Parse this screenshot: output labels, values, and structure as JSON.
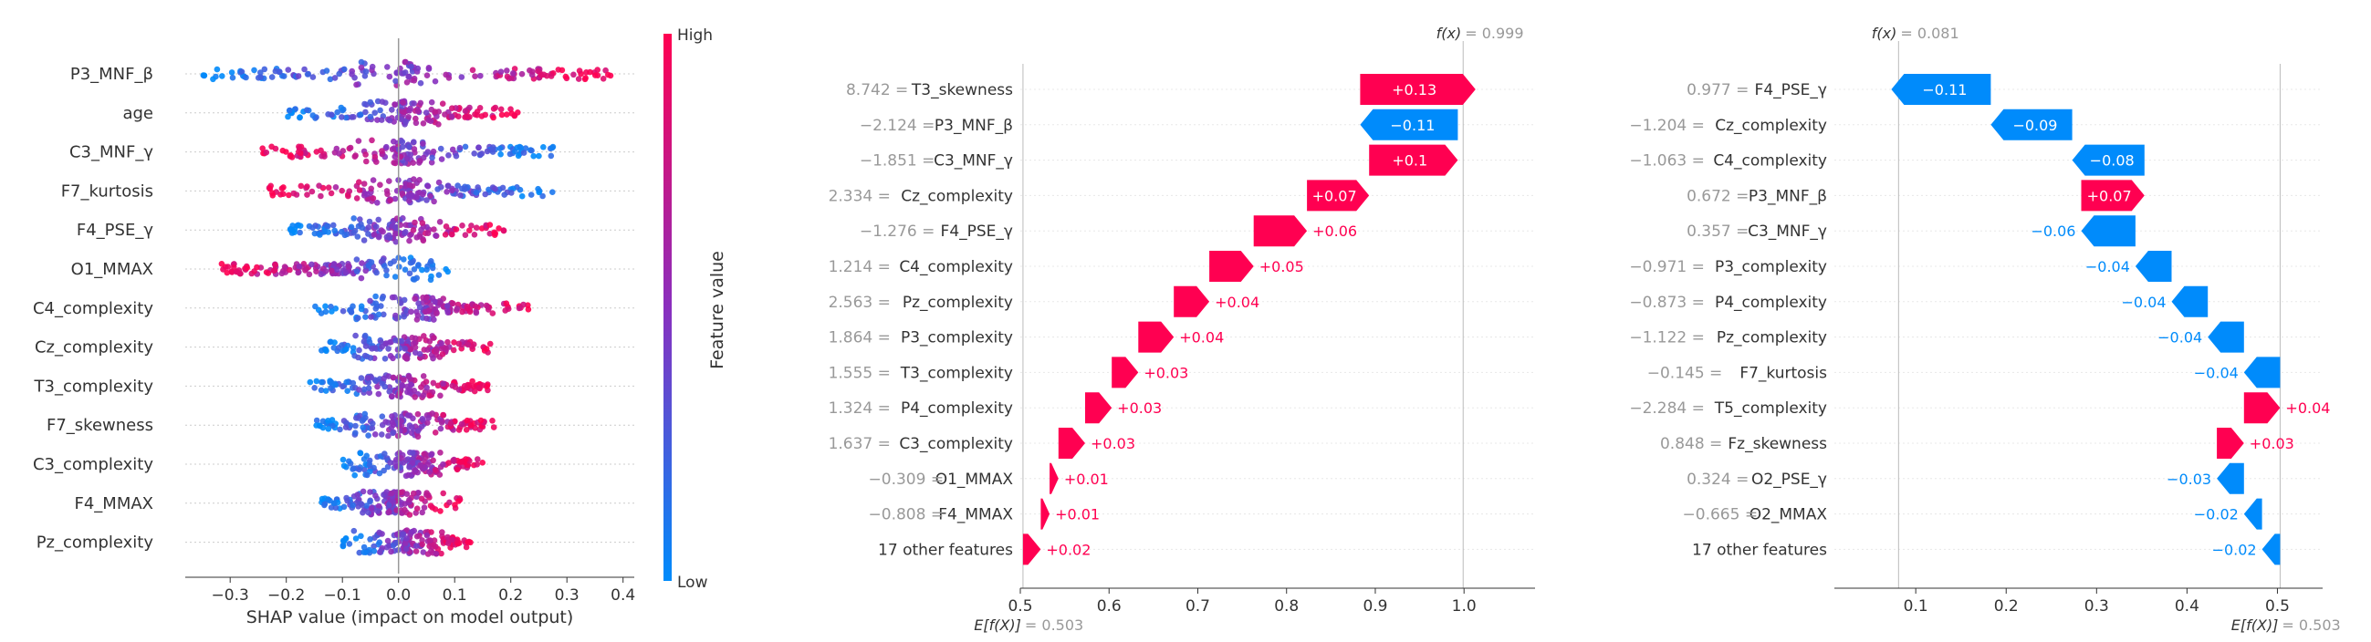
{
  "colors": {
    "positive": "#ff0051",
    "negative": "#008bfb",
    "mid": "#8a2fbe",
    "grid": "#e5e5e5"
  },
  "chart_data": [
    {
      "type": "scatter",
      "subtype": "beeswarm",
      "features": [
        "P3_MNF_β",
        "age",
        "C3_MNF_γ",
        "F7_kurtosis",
        "F4_PSE_γ",
        "O1_MMAX",
        "C4_complexity",
        "Cz_complexity",
        "T3_complexity",
        "F7_skewness",
        "C3_complexity",
        "F4_MMAX",
        "Pz_complexity"
      ],
      "xlabel": "SHAP value (impact on model output)",
      "xlim": [
        -0.38,
        0.42
      ],
      "xticks": [
        -0.3,
        -0.2,
        -0.1,
        0.0,
        0.1,
        0.2,
        0.3,
        0.4
      ],
      "xtick_labels": [
        "−0.3",
        "−0.2",
        "−0.1",
        "0.0",
        "0.1",
        "0.2",
        "0.3",
        "0.4"
      ],
      "shap_range": [
        [
          -0.35,
          0.4
        ],
        [
          -0.2,
          0.22
        ],
        [
          -0.25,
          0.28
        ],
        [
          -0.24,
          0.28
        ],
        [
          -0.2,
          0.19
        ],
        [
          -0.32,
          0.09
        ],
        [
          -0.15,
          0.25
        ],
        [
          -0.14,
          0.17
        ],
        [
          -0.16,
          0.16
        ],
        [
          -0.15,
          0.17
        ],
        [
          -0.1,
          0.15
        ],
        [
          -0.14,
          0.11
        ],
        [
          -0.1,
          0.13
        ]
      ],
      "colorbar": {
        "high_label": "High",
        "low_label": "Low",
        "label": "Feature value"
      }
    },
    {
      "type": "bar",
      "subtype": "waterfall",
      "fx_label": "f(x)",
      "fx_value": "= 0.999",
      "ex_label": "E[f(X)]",
      "ex_value": "= 0.503",
      "base": 0.503,
      "fx": 0.999,
      "xlim": [
        0.5,
        1.08
      ],
      "xticks": [
        0.5,
        0.6,
        0.7,
        0.8,
        0.9,
        1.0
      ],
      "xtick_labels": [
        "0.5",
        "0.6",
        "0.7",
        "0.8",
        "0.9",
        "1.0"
      ],
      "rows": [
        {
          "value": "8.742 =",
          "feature": "T3_skewness",
          "shap": 0.13,
          "label": "+0.13"
        },
        {
          "value": "−2.124 =",
          "feature": "P3_MNF_β",
          "shap": -0.11,
          "label": "−0.11"
        },
        {
          "value": "−1.851 =",
          "feature": "C3_MNF_γ",
          "shap": 0.1,
          "label": "+0.1"
        },
        {
          "value": "2.334 =",
          "feature": "Cz_complexity",
          "shap": 0.07,
          "label": "+0.07"
        },
        {
          "value": "−1.276 =",
          "feature": "F4_PSE_γ",
          "shap": 0.06,
          "label": "+0.06"
        },
        {
          "value": "1.214 =",
          "feature": "C4_complexity",
          "shap": 0.05,
          "label": "+0.05"
        },
        {
          "value": "2.563 =",
          "feature": "Pz_complexity",
          "shap": 0.04,
          "label": "+0.04"
        },
        {
          "value": "1.864 =",
          "feature": "P3_complexity",
          "shap": 0.04,
          "label": "+0.04"
        },
        {
          "value": "1.555 =",
          "feature": "T3_complexity",
          "shap": 0.03,
          "label": "+0.03"
        },
        {
          "value": "1.324 =",
          "feature": "P4_complexity",
          "shap": 0.03,
          "label": "+0.03"
        },
        {
          "value": "1.637 =",
          "feature": "C3_complexity",
          "shap": 0.03,
          "label": "+0.03"
        },
        {
          "value": "−0.309 =",
          "feature": "O1_MMAX",
          "shap": 0.01,
          "label": "+0.01"
        },
        {
          "value": "−0.808 =",
          "feature": "F4_MMAX",
          "shap": 0.01,
          "label": "+0.01"
        },
        {
          "value": "",
          "feature": "17 other features",
          "shap": 0.02,
          "label": "+0.02"
        }
      ]
    },
    {
      "type": "bar",
      "subtype": "waterfall",
      "fx_label": "f(x)",
      "fx_value": "= 0.081",
      "ex_label": "E[f(X)]",
      "ex_value": "= 0.503",
      "base": 0.503,
      "fx": 0.081,
      "xlim": [
        0.01,
        0.55
      ],
      "xticks": [
        0.1,
        0.2,
        0.3,
        0.4,
        0.5
      ],
      "xtick_labels": [
        "0.1",
        "0.2",
        "0.3",
        "0.4",
        "0.5"
      ],
      "rows": [
        {
          "value": "0.977 =",
          "feature": "F4_PSE_γ",
          "shap": -0.11,
          "label": "−0.11"
        },
        {
          "value": "−1.204 =",
          "feature": "Cz_complexity",
          "shap": -0.09,
          "label": "−0.09"
        },
        {
          "value": "−1.063 =",
          "feature": "C4_complexity",
          "shap": -0.08,
          "label": "−0.08"
        },
        {
          "value": "0.672 =",
          "feature": "P3_MNF_β",
          "shap": 0.07,
          "label": "+0.07"
        },
        {
          "value": "0.357 =",
          "feature": "C3_MNF_γ",
          "shap": -0.06,
          "label": "−0.06"
        },
        {
          "value": "−0.971 =",
          "feature": "P3_complexity",
          "shap": -0.04,
          "label": "−0.04"
        },
        {
          "value": "−0.873 =",
          "feature": "P4_complexity",
          "shap": -0.04,
          "label": "−0.04"
        },
        {
          "value": "−1.122 =",
          "feature": "Pz_complexity",
          "shap": -0.04,
          "label": "−0.04"
        },
        {
          "value": "−0.145 =",
          "feature": "F7_kurtosis",
          "shap": -0.04,
          "label": "−0.04"
        },
        {
          "value": "−2.284 =",
          "feature": "T5_complexity",
          "shap": 0.04,
          "label": "+0.04"
        },
        {
          "value": "0.848 =",
          "feature": "Fz_skewness",
          "shap": 0.03,
          "label": "+0.03"
        },
        {
          "value": "0.324 =",
          "feature": "O2_PSE_γ",
          "shap": -0.03,
          "label": "−0.03"
        },
        {
          "value": "−0.665 =",
          "feature": "O2_MMAX",
          "shap": -0.02,
          "label": "−0.02"
        },
        {
          "value": "",
          "feature": "17 other features",
          "shap": -0.02,
          "label": "−0.02"
        }
      ]
    }
  ]
}
